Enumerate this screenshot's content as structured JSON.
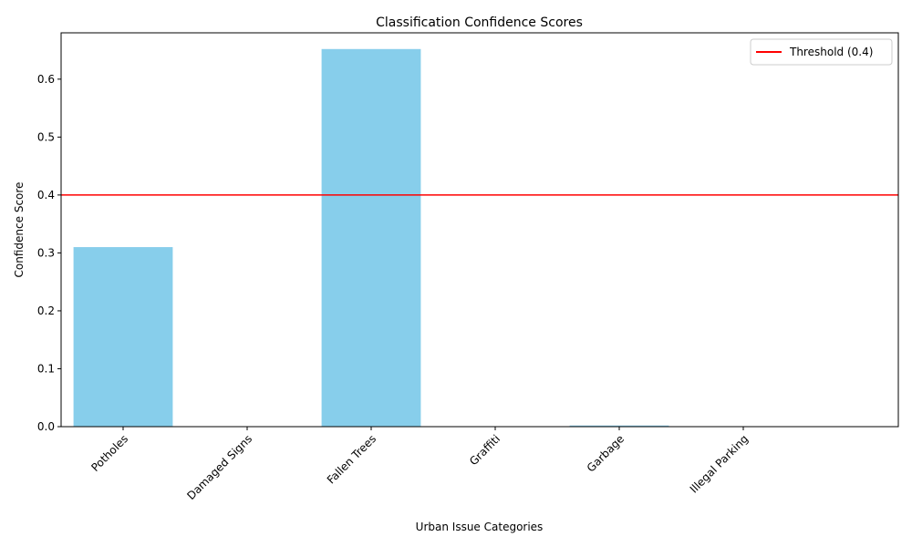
{
  "chart_data": {
    "type": "bar",
    "title": "Classification Confidence Scores",
    "xlabel": "Urban Issue Categories",
    "ylabel": "Confidence Score",
    "categories": [
      "Potholes",
      "Damaged Signs",
      "Fallen Trees",
      "Graffiti",
      "Garbage",
      "Illegal Parking"
    ],
    "values": [
      0.31,
      0.0002,
      0.652,
      0.0002,
      0.002,
      0.0002
    ],
    "ylim": [
      0,
      0.68
    ],
    "yticks": [
      0.0,
      0.1,
      0.2,
      0.3,
      0.4,
      0.5,
      0.6
    ],
    "ytick_labels": [
      "0.0",
      "0.1",
      "0.2",
      "0.3",
      "0.4",
      "0.5",
      "0.6"
    ],
    "bar_color": "#87ceeb",
    "threshold": {
      "value": 0.4,
      "label": "Threshold (0.4)",
      "color": "#ff0000"
    },
    "legend_position": "top-right",
    "grid": false
  }
}
